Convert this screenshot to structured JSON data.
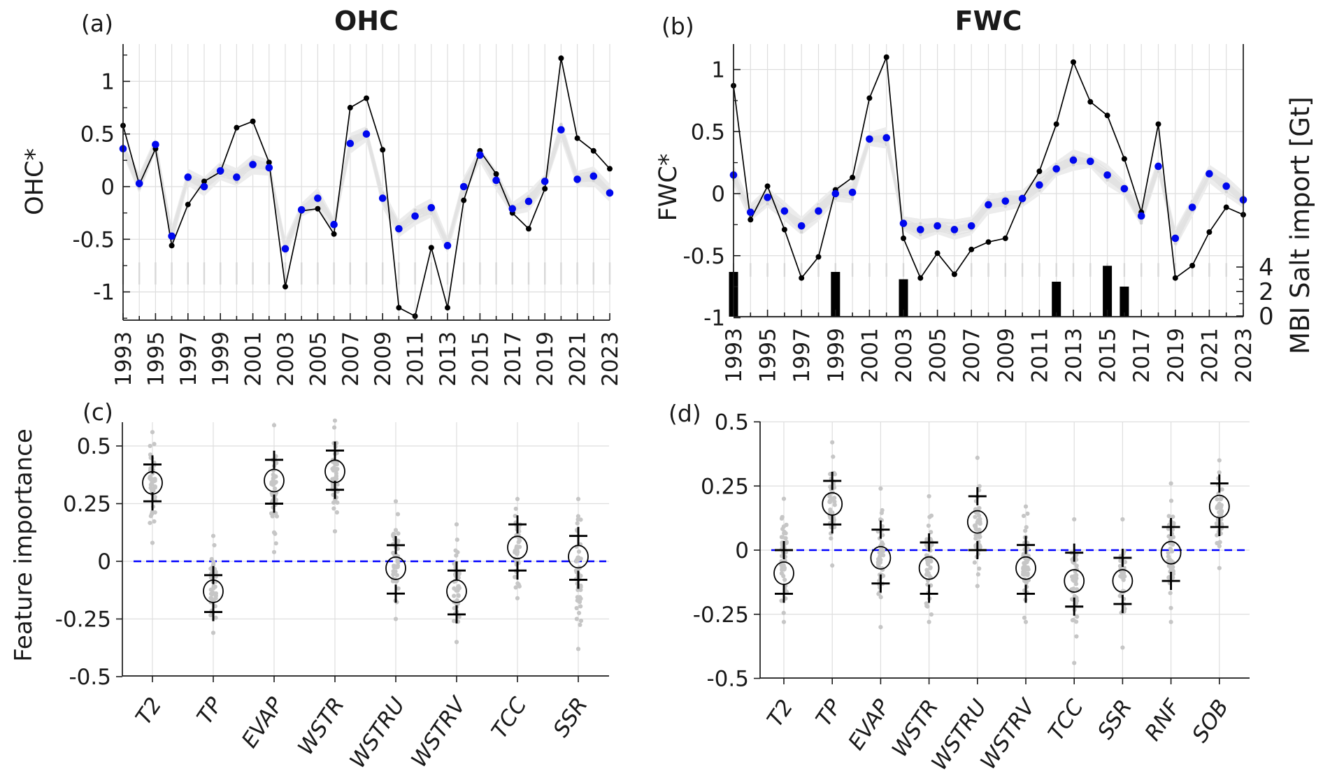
{
  "figure": {
    "background": "#ffffff"
  },
  "colors": {
    "observed_line": "#000000",
    "prediction_dot": "#0008ee",
    "ensemble_band": "#ececec",
    "ensemble_line": "#e2e2e2",
    "ensemble_dot": "#d0d0d0",
    "grid": "#dedede",
    "stub": "#d8d8d8",
    "axis": "#1a1a1a",
    "zero_dash": "#0000ff",
    "scatter_dot": "#c6c6c6",
    "bar": "#000000"
  },
  "panels": {
    "a": {
      "label": "(a)",
      "title": "OHC",
      "ylabel": "OHC*"
    },
    "b": {
      "label": "(b)",
      "title": "FWC",
      "ylabel": "FWC*",
      "right_ylabel": "MBI Salt import [Gt]"
    },
    "c": {
      "label": "(c)",
      "ylabel": "Feature importance"
    },
    "d": {
      "label": "(d)"
    }
  },
  "chart_data": [
    {
      "id": "a",
      "type": "timeseries",
      "panel_label": "(a)",
      "title": "OHC",
      "ylabel": "OHC*",
      "x_years": [
        1993,
        1994,
        1995,
        1996,
        1997,
        1998,
        1999,
        2000,
        2001,
        2002,
        2003,
        2004,
        2005,
        2006,
        2007,
        2008,
        2009,
        2010,
        2011,
        2012,
        2013,
        2014,
        2015,
        2016,
        2017,
        2018,
        2019,
        2020,
        2021,
        2022,
        2023
      ],
      "xtick_years": [
        1993,
        1995,
        1997,
        1999,
        2001,
        2003,
        2005,
        2007,
        2009,
        2011,
        2013,
        2015,
        2017,
        2019,
        2021,
        2023
      ],
      "yticks": [
        {
          "v": 1,
          "label": "1"
        },
        {
          "v": 0.5,
          "label": "0.5"
        },
        {
          "v": 0,
          "label": "0"
        },
        {
          "v": -0.5,
          "label": "-0.5"
        },
        {
          "v": -1,
          "label": "-1"
        }
      ],
      "ylim": [
        -1.27,
        1.36
      ],
      "series": {
        "observed": {
          "name": "OHC* (black line)",
          "values": [
            0.58,
            0.02,
            0.36,
            -0.56,
            -0.17,
            0.05,
            0.14,
            0.56,
            0.62,
            0.23,
            -0.95,
            -0.23,
            -0.21,
            -0.45,
            0.75,
            0.84,
            0.35,
            -1.15,
            -1.23,
            -0.58,
            -1.15,
            -0.13,
            0.34,
            0.12,
            -0.25,
            -0.4,
            -0.02,
            1.22,
            0.46,
            0.34,
            0.17
          ]
        },
        "prediction": {
          "name": "ensemble mean (blue dots)",
          "values": [
            0.36,
            0.03,
            0.4,
            -0.47,
            0.09,
            0.0,
            0.15,
            0.09,
            0.21,
            0.18,
            -0.59,
            -0.22,
            -0.11,
            -0.36,
            0.41,
            0.5,
            -0.11,
            -0.4,
            -0.28,
            -0.2,
            -0.56,
            0.0,
            0.3,
            0.06,
            -0.21,
            -0.14,
            0.05,
            0.54,
            0.07,
            0.1,
            -0.06
          ]
        }
      },
      "ensemble": {
        "members": 26,
        "halfwidth": 0.08
      }
    },
    {
      "id": "b",
      "type": "timeseries",
      "panel_label": "(b)",
      "title": "FWC",
      "ylabel": "FWC*",
      "x_years": [
        1993,
        1994,
        1995,
        1996,
        1997,
        1998,
        1999,
        2000,
        2001,
        2002,
        2003,
        2004,
        2005,
        2006,
        2007,
        2008,
        2009,
        2010,
        2011,
        2012,
        2013,
        2014,
        2015,
        2016,
        2017,
        2018,
        2019,
        2020,
        2021,
        2022,
        2023
      ],
      "xtick_years": [
        1993,
        1995,
        1997,
        1999,
        2001,
        2003,
        2005,
        2007,
        2009,
        2011,
        2013,
        2015,
        2017,
        2019,
        2021,
        2023
      ],
      "yticks": [
        {
          "v": 1,
          "label": "1"
        },
        {
          "v": 0.5,
          "label": "0.5"
        },
        {
          "v": 0,
          "label": "0"
        },
        {
          "v": -0.5,
          "label": "-0.5"
        },
        {
          "v": -1,
          "label": "-1"
        }
      ],
      "ylim": [
        -1.0,
        1.21
      ],
      "series": {
        "observed": {
          "name": "FWC* (black line)",
          "values": [
            0.87,
            -0.21,
            0.06,
            -0.29,
            -0.68,
            -0.51,
            0.03,
            0.13,
            0.77,
            1.1,
            -0.36,
            -0.68,
            -0.48,
            -0.65,
            -0.45,
            -0.39,
            -0.36,
            -0.04,
            0.18,
            0.56,
            1.06,
            0.74,
            0.63,
            0.28,
            -0.15,
            0.56,
            -0.68,
            -0.58,
            -0.31,
            -0.11,
            -0.17
          ]
        },
        "prediction": {
          "name": "ensemble mean (blue dots)",
          "values": [
            0.15,
            -0.15,
            -0.03,
            -0.14,
            -0.26,
            -0.14,
            0.0,
            0.01,
            0.44,
            0.45,
            -0.24,
            -0.29,
            -0.26,
            -0.29,
            -0.26,
            -0.09,
            -0.06,
            -0.04,
            0.07,
            0.2,
            0.27,
            0.26,
            0.15,
            0.04,
            -0.18,
            0.22,
            -0.36,
            -0.11,
            0.16,
            0.06,
            -0.05
          ]
        }
      },
      "ensemble": {
        "members": 26,
        "halfwidth": 0.07
      },
      "bars": {
        "name": "MBI Salt import",
        "years": [
          1993,
          1999,
          2003,
          2012,
          2015,
          2016
        ],
        "values_gt": [
          3.6,
          3.6,
          3.0,
          2.8,
          4.1,
          2.4
        ]
      },
      "right_axis": {
        "label": "MBI Salt import [Gt]",
        "ticks": [
          {
            "v": 0,
            "label": "0"
          },
          {
            "v": 2,
            "label": "2"
          },
          {
            "v": 4,
            "label": "4"
          }
        ]
      }
    },
    {
      "id": "c",
      "type": "importance",
      "panel_label": "(c)",
      "ylabel": "Feature importance",
      "categories": [
        "T2",
        "TP",
        "EVAP",
        "WSTR",
        "WSTRU",
        "WSTRV",
        "TCC",
        "SSR"
      ],
      "yticks": [
        {
          "v": 0.5,
          "label": "0.5"
        },
        {
          "v": 0.25,
          "label": "0.25"
        },
        {
          "v": 0,
          "label": "0"
        },
        {
          "v": -0.25,
          "label": "-0.25"
        },
        {
          "v": -0.5,
          "label": "-0.5"
        }
      ],
      "ylim": [
        -0.5,
        0.6
      ],
      "circle_mean": [
        0.34,
        -0.13,
        0.35,
        0.39,
        -0.03,
        -0.13,
        0.06,
        0.02
      ],
      "plus_upper": [
        0.42,
        -0.06,
        0.44,
        0.48,
        0.07,
        -0.04,
        0.16,
        0.11
      ],
      "plus_lower": [
        0.26,
        -0.22,
        0.25,
        0.31,
        -0.14,
        -0.23,
        -0.04,
        -0.08
      ],
      "scatter_upper": [
        0.56,
        0.11,
        0.59,
        0.61,
        0.26,
        0.16,
        0.27,
        0.27
      ],
      "scatter_lower": [
        0.08,
        -0.31,
        0.04,
        0.13,
        -0.25,
        -0.35,
        -0.16,
        -0.38
      ]
    },
    {
      "id": "d",
      "type": "importance",
      "panel_label": "(d)",
      "ylabel": "",
      "categories": [
        "T2",
        "TP",
        "EVAP",
        "WSTR",
        "WSTRU",
        "WSTRV",
        "TCC",
        "SSR",
        "RNF",
        "SOB"
      ],
      "yticks": [
        {
          "v": 0.5,
          "label": "0.5"
        },
        {
          "v": 0.25,
          "label": "0.25"
        },
        {
          "v": 0,
          "label": "0"
        },
        {
          "v": -0.25,
          "label": "-0.25"
        },
        {
          "v": -0.5,
          "label": "-0.5"
        }
      ],
      "ylim": [
        -0.5,
        0.5
      ],
      "circle_mean": [
        -0.09,
        0.18,
        -0.03,
        -0.07,
        0.11,
        -0.07,
        -0.12,
        -0.12,
        -0.01,
        0.17
      ],
      "plus_upper": [
        0.0,
        0.27,
        0.08,
        0.03,
        0.21,
        0.02,
        -0.01,
        -0.03,
        0.09,
        0.26
      ],
      "plus_lower": [
        -0.17,
        0.1,
        -0.13,
        -0.17,
        0.0,
        -0.17,
        -0.22,
        -0.21,
        -0.12,
        0.09
      ],
      "scatter_upper": [
        0.2,
        0.42,
        0.24,
        0.21,
        0.36,
        0.17,
        0.12,
        0.12,
        0.26,
        0.35
      ],
      "scatter_lower": [
        -0.28,
        -0.06,
        -0.3,
        -0.28,
        -0.14,
        -0.28,
        -0.44,
        -0.38,
        -0.28,
        -0.07
      ]
    }
  ]
}
